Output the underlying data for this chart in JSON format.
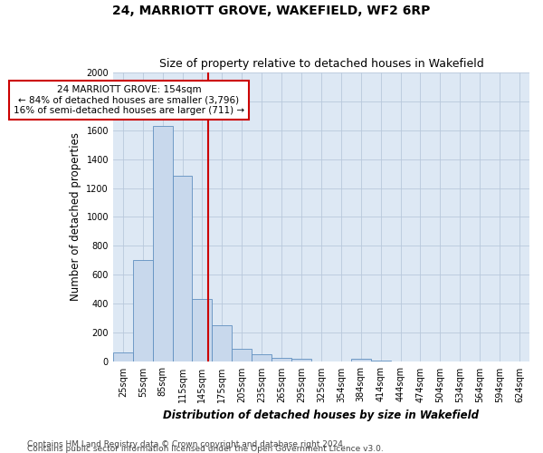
{
  "title": "24, MARRIOTT GROVE, WAKEFIELD, WF2 6RP",
  "subtitle": "Size of property relative to detached houses in Wakefield",
  "xlabel": "Distribution of detached houses by size in Wakefield",
  "ylabel": "Number of detached properties",
  "footnote1": "Contains HM Land Registry data © Crown copyright and database right 2024.",
  "footnote2": "Contains public sector information licensed under the Open Government Licence v3.0.",
  "categories": [
    "25sqm",
    "55sqm",
    "85sqm",
    "115sqm",
    "145sqm",
    "175sqm",
    "205sqm",
    "235sqm",
    "265sqm",
    "295sqm",
    "325sqm",
    "354sqm",
    "384sqm",
    "414sqm",
    "444sqm",
    "474sqm",
    "504sqm",
    "534sqm",
    "564sqm",
    "594sqm",
    "624sqm"
  ],
  "values": [
    65,
    700,
    1630,
    1285,
    435,
    252,
    88,
    50,
    27,
    22,
    3,
    3,
    20,
    12,
    2,
    1,
    1,
    1,
    1,
    1,
    1
  ],
  "bar_color": "#c8d8ec",
  "bar_edge_color": "#6090c0",
  "vline_color": "#cc0000",
  "annotation_text": "24 MARRIOTT GROVE: 154sqm\n← 84% of detached houses are smaller (3,796)\n16% of semi-detached houses are larger (711) →",
  "annotation_box_color": "#ffffff",
  "annotation_box_edge": "#cc0000",
  "ylim": [
    0,
    2000
  ],
  "yticks": [
    0,
    200,
    400,
    600,
    800,
    1000,
    1200,
    1400,
    1600,
    1800,
    2000
  ],
  "axes_bg": "#dde8f4",
  "background_color": "#ffffff",
  "grid_color": "#b8c8dc",
  "title_fontsize": 10,
  "subtitle_fontsize": 9,
  "label_fontsize": 8.5,
  "tick_fontsize": 7,
  "footnote_fontsize": 6.5
}
